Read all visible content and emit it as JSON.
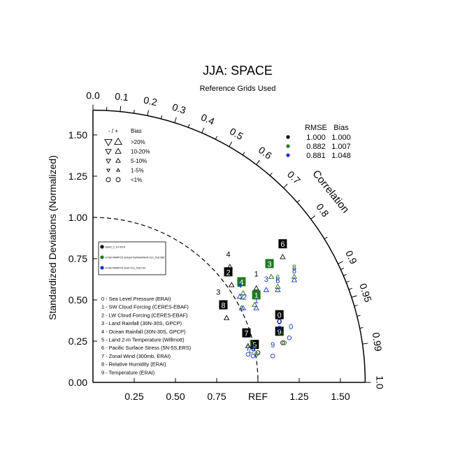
{
  "chart_data": {
    "type": "scatter",
    "title": "JJA: SPACE",
    "subtitle": "Reference Grids Used",
    "ylabel": "Standardized Deviations (Normalized)",
    "angular_label": "Correlation",
    "x_tick_labels": [
      "0.25",
      "0.50",
      "0.75",
      "REF",
      "1.25",
      "1.50"
    ],
    "x_ticks": [
      0.25,
      0.5,
      0.75,
      1.0,
      1.25,
      1.5
    ],
    "y_tick_labels": [
      "0.00",
      "0.25",
      "0.50",
      "0.75",
      "1.00",
      "1.25",
      "1.50"
    ],
    "y_ticks": [
      0,
      0.25,
      0.5,
      0.75,
      1.0,
      1.25,
      1.5
    ],
    "radius_max": 1.65,
    "corr_labels": [
      {
        "c": 0.0,
        "label": "0.0"
      },
      {
        "c": 0.1,
        "label": "0.1"
      },
      {
        "c": 0.2,
        "label": "0.2"
      },
      {
        "c": 0.3,
        "label": "0.3"
      },
      {
        "c": 0.4,
        "label": "0.4"
      },
      {
        "c": 0.5,
        "label": "0.5"
      },
      {
        "c": 0.6,
        "label": "0.6"
      },
      {
        "c": 0.7,
        "label": "0.7"
      },
      {
        "c": 0.8,
        "label": "0.8"
      },
      {
        "c": 0.9,
        "label": "0.9"
      },
      {
        "c": 0.95,
        "label": "0.95"
      },
      {
        "c": 0.99,
        "label": "0.99"
      },
      {
        "c": 1.0,
        "label": "1.0"
      }
    ],
    "corr_minor_ticks": [
      0.05,
      0.15,
      0.25,
      0.35,
      0.45,
      0.55,
      0.65,
      0.75,
      0.85,
      0.91,
      0.92,
      0.93,
      0.94,
      0.96,
      0.97,
      0.98
    ],
    "bias_legend": {
      "header_sign": "- / +",
      "header": "Bias",
      "rows": [
        {
          "label": ">20%",
          "size": 9
        },
        {
          "label": "10-20%",
          "size": 7
        },
        {
          "label": "5-10%",
          "size": 5.5
        },
        {
          "label": "1-5%",
          "size": 4
        },
        {
          "label": "<1%",
          "size": 4,
          "circle": true
        }
      ]
    },
    "stats_table": {
      "headers": [
        "RMSE",
        "Bias"
      ],
      "rows": [
        {
          "color": "#000000",
          "rmse": "1.000",
          "bias": "1.000"
        },
        {
          "color": "#1e7a1e",
          "rmse": "0.882",
          "bias": "1.007"
        },
        {
          "color": "#1c2fd0",
          "rmse": "0.881",
          "bias": "1.048"
        }
      ]
    },
    "series": [
      {
        "name": "case0_0_lv1 fe3.6",
        "color": "#000000"
      },
      {
        "name": "c4 fe6 FAMIPC5 ne0np4 NarNoahNHS Oco_Test.986",
        "color": "#1e7a1e"
      },
      {
        "name": "c4 fe6 FAMIPC5 ne30 Oco_Test.015",
        "color": "#1c2fd0"
      }
    ],
    "variables": [
      "0 - Sea Level Pressure (ERAI)",
      "1 - SW Cloud Forcing (CERES-EBAF)",
      "2 - LW Cloud Forcing (CERES-EBAF)",
      "3 - Land Rainfall (30N-30S, GPCP)",
      "4 - Ocean Rainfall (30N-30S, GPCP)",
      "5 - Land 2-m Temperature (Willmott)",
      "6 - Pacific Surface Stress (5N-5S,ERS)",
      "7 - Zonal Wind (300mb, ERAI)",
      "8 - Relative Humidity (ERAI)",
      "9 - Temperature (ERAI)"
    ],
    "points": [
      {
        "id": "0",
        "series": 0,
        "x": 1.13,
        "y": 0.37,
        "label": "0",
        "boxed": true,
        "marker": "o",
        "lx": 1.13,
        "ly": 0.37
      },
      {
        "id": "1",
        "series": 0,
        "x": 0.99,
        "y": 0.57,
        "label": "1",
        "boxed": false,
        "marker": "up",
        "lx": 0.99,
        "ly": 0.62
      },
      {
        "id": "2",
        "series": 0,
        "x": 0.84,
        "y": 0.59,
        "label": "2",
        "boxed": true,
        "marker": "up",
        "lx": 0.82,
        "ly": 0.63
      },
      {
        "id": "3",
        "series": 0,
        "x": 0.78,
        "y": 0.47,
        "label": "3",
        "boxed": false,
        "marker": "up",
        "lx": 0.76,
        "ly": 0.51
      },
      {
        "id": "4",
        "series": 0,
        "x": 0.83,
        "y": 0.7,
        "label": "4",
        "boxed": false,
        "marker": "up",
        "lx": 0.82,
        "ly": 0.74
      },
      {
        "id": "5",
        "series": 0,
        "x": 1.0,
        "y": 0.18,
        "label": "5",
        "boxed": true,
        "marker": "o",
        "lx": 0.98,
        "ly": 0.19
      },
      {
        "id": "6",
        "series": 0,
        "x": 1.15,
        "y": 0.76,
        "label": "6",
        "boxed": true,
        "marker": "up",
        "lx": 1.15,
        "ly": 0.8
      },
      {
        "id": "7",
        "series": 0,
        "x": 0.94,
        "y": 0.22,
        "label": "7",
        "boxed": true,
        "marker": "up",
        "lx": 0.93,
        "ly": 0.26
      },
      {
        "id": "8",
        "series": 0,
        "x": 0.81,
        "y": 0.39,
        "label": "8",
        "boxed": true,
        "marker": "up",
        "lx": 0.79,
        "ly": 0.43
      },
      {
        "id": "9",
        "series": 0,
        "x": 1.15,
        "y": 0.24,
        "label": "9",
        "boxed": true,
        "marker": "o",
        "lx": 1.13,
        "ly": 0.27
      },
      {
        "id": "1",
        "series": 1,
        "x": 0.98,
        "y": 0.47,
        "label": "1",
        "boxed": true,
        "marker": "up",
        "lx": 0.99,
        "ly": 0.49
      },
      {
        "id": "2",
        "series": 1,
        "x": 0.9,
        "y": 0.45,
        "label": "2",
        "boxed": false,
        "marker": "up",
        "lx": 0.9,
        "ly": 0.48
      },
      {
        "id": "3",
        "series": 1,
        "x": 1.08,
        "y": 0.64,
        "label": "3",
        "boxed": true,
        "marker": "up",
        "lx": 1.07,
        "ly": 0.68
      },
      {
        "id": "4",
        "series": 1,
        "x": 0.91,
        "y": 0.54,
        "label": "4",
        "boxed": true,
        "marker": "up",
        "lx": 0.9,
        "ly": 0.57
      },
      {
        "id": "5",
        "series": 1,
        "x": 0.99,
        "y": 0.17,
        "label": "5",
        "boxed": false,
        "marker": "o",
        "lx": 0.98,
        "ly": 0.18
      },
      {
        "id": "6",
        "series": 1,
        "x": 1.12,
        "y": 0.58,
        "label": "6",
        "boxed": false,
        "marker": "up",
        "lx": 1.12,
        "ly": 0.6
      },
      {
        "id": "7",
        "series": 1,
        "x": 0.96,
        "y": 0.19,
        "label": "7",
        "boxed": false,
        "marker": "o",
        "lx": 0.96,
        "ly": 0.2
      },
      {
        "id": "8",
        "series": 1,
        "x": 1.22,
        "y": 0.64,
        "label": "8",
        "boxed": false,
        "marker": "up",
        "lx": 1.22,
        "ly": 0.66
      },
      {
        "id": "9",
        "series": 1,
        "x": 1.16,
        "y": 0.24,
        "label": "9",
        "boxed": false,
        "marker": "o",
        "lx": 1.14,
        "ly": 0.26
      },
      {
        "id": "0",
        "series": 2,
        "x": 1.13,
        "y": 0.33,
        "label": "0",
        "boxed": false,
        "marker": "o",
        "lx": 1.13,
        "ly": 0.33
      },
      {
        "id": "0",
        "series": 2,
        "x": 1.19,
        "y": 0.27,
        "label": "0",
        "boxed": false,
        "marker": "o",
        "lx": 1.2,
        "ly": 0.3
      },
      {
        "id": "1",
        "series": 2,
        "x": 0.99,
        "y": 0.45,
        "label": "1",
        "boxed": false,
        "marker": "up",
        "lx": 0.99,
        "ly": 0.46
      },
      {
        "id": "2",
        "series": 2,
        "x": 0.91,
        "y": 0.45,
        "label": "2",
        "boxed": false,
        "marker": "up",
        "lx": 0.92,
        "ly": 0.48
      },
      {
        "id": "3",
        "series": 2,
        "x": 1.05,
        "y": 0.56,
        "label": "3",
        "boxed": false,
        "marker": "up",
        "lx": 1.05,
        "ly": 0.59
      },
      {
        "id": "4",
        "series": 2,
        "x": 0.89,
        "y": 0.52,
        "label": "4",
        "boxed": false,
        "marker": "up",
        "lx": 0.89,
        "ly": 0.55
      },
      {
        "id": "5",
        "series": 2,
        "x": 0.97,
        "y": 0.16,
        "label": "5",
        "boxed": false,
        "marker": "o",
        "lx": 0.97,
        "ly": 0.17
      },
      {
        "id": "6",
        "series": 2,
        "x": 1.12,
        "y": 0.56,
        "label": "6",
        "boxed": false,
        "marker": "up",
        "lx": 1.12,
        "ly": 0.58
      },
      {
        "id": "7",
        "series": 2,
        "x": 0.94,
        "y": 0.17,
        "label": "7",
        "boxed": false,
        "marker": "o",
        "lx": 0.94,
        "ly": 0.17
      },
      {
        "id": "8",
        "series": 2,
        "x": 1.22,
        "y": 0.62,
        "label": "8",
        "boxed": false,
        "marker": "up",
        "lx": 1.22,
        "ly": 0.64
      },
      {
        "id": "9",
        "series": 2,
        "x": 1.09,
        "y": 0.16,
        "label": "9",
        "boxed": false,
        "marker": "o",
        "lx": 1.09,
        "ly": 0.19
      }
    ]
  }
}
